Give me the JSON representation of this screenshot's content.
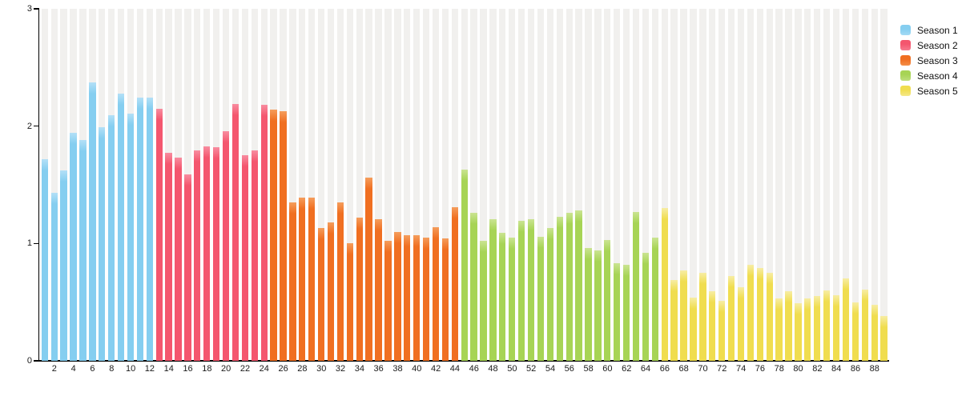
{
  "chart_data": {
    "type": "bar",
    "title": "",
    "xlabel": "",
    "ylabel": "",
    "ylim": [
      0,
      3
    ],
    "yticks": [
      0,
      1,
      2,
      3
    ],
    "grid": "striped-columns",
    "stripe_color": "#f1f0ee",
    "axis_color": "#000000",
    "legend_position": "top-right",
    "episodes_start": 1,
    "episodes_end": 89,
    "xtick_labels": [
      "2",
      "4",
      "6",
      "8",
      "10",
      "12",
      "14",
      "16",
      "18",
      "20",
      "22",
      "24",
      "26",
      "28",
      "30",
      "32",
      "34",
      "36",
      "38",
      "40",
      "42",
      "44",
      "46",
      "48",
      "50",
      "52",
      "54",
      "56",
      "58",
      "60",
      "62",
      "64",
      "66",
      "68",
      "70",
      "72",
      "74",
      "76",
      "78",
      "80",
      "82",
      "84",
      "86",
      "88"
    ],
    "series": [
      {
        "name": "Season 1",
        "color": "#85cef0",
        "tint": "#b3e0f7",
        "first_episode": 1,
        "values": [
          1.72,
          1.43,
          1.62,
          1.94,
          1.88,
          2.37,
          1.99,
          2.09,
          2.28,
          2.11,
          2.24,
          2.24
        ]
      },
      {
        "name": "Season 2",
        "color": "#f4566e",
        "tint": "#f88da0",
        "first_episode": 13,
        "values": [
          2.15,
          1.77,
          1.73,
          1.59,
          1.79,
          1.83,
          1.82,
          1.96,
          2.19,
          1.75,
          1.79,
          2.18
        ]
      },
      {
        "name": "Season 3",
        "color": "#f06f21",
        "tint": "#f59d5c",
        "first_episode": 25,
        "values": [
          2.14,
          2.13,
          1.35,
          1.39,
          1.39,
          1.13,
          1.18,
          1.35,
          1.0,
          1.22,
          1.56,
          1.21,
          1.02,
          1.1,
          1.07,
          1.07,
          1.05,
          1.14,
          1.04,
          1.31
        ]
      },
      {
        "name": "Season 4",
        "color": "#a7d455",
        "tint": "#cae492",
        "first_episode": 45,
        "values": [
          1.63,
          1.26,
          1.02,
          1.21,
          1.09,
          1.05,
          1.19,
          1.21,
          1.06,
          1.13,
          1.23,
          1.26,
          1.28,
          0.96,
          0.94,
          1.03,
          0.83,
          0.82,
          1.27,
          0.92,
          1.05
        ]
      },
      {
        "name": "Season 5",
        "color": "#f0dd4f",
        "tint": "#f7eda4",
        "first_episode": 66,
        "values": [
          1.3,
          0.69,
          0.77,
          0.54,
          0.75,
          0.59,
          0.51,
          0.72,
          0.63,
          0.82,
          0.79,
          0.75,
          0.53,
          0.59,
          0.49,
          0.53,
          0.55,
          0.6,
          0.56,
          0.7,
          0.5,
          0.61,
          0.48,
          0.38
        ]
      }
    ]
  },
  "legend": {
    "items": [
      {
        "label": "Season 1",
        "color": "#85cef0",
        "tint": "#b3e0f7"
      },
      {
        "label": "Season 2",
        "color": "#f4566e",
        "tint": "#f88da0"
      },
      {
        "label": "Season 3",
        "color": "#f06f21",
        "tint": "#f59d5c"
      },
      {
        "label": "Season 4",
        "color": "#a7d455",
        "tint": "#cae492"
      },
      {
        "label": "Season 5",
        "color": "#f0dd4f",
        "tint": "#f7eda4"
      }
    ]
  }
}
